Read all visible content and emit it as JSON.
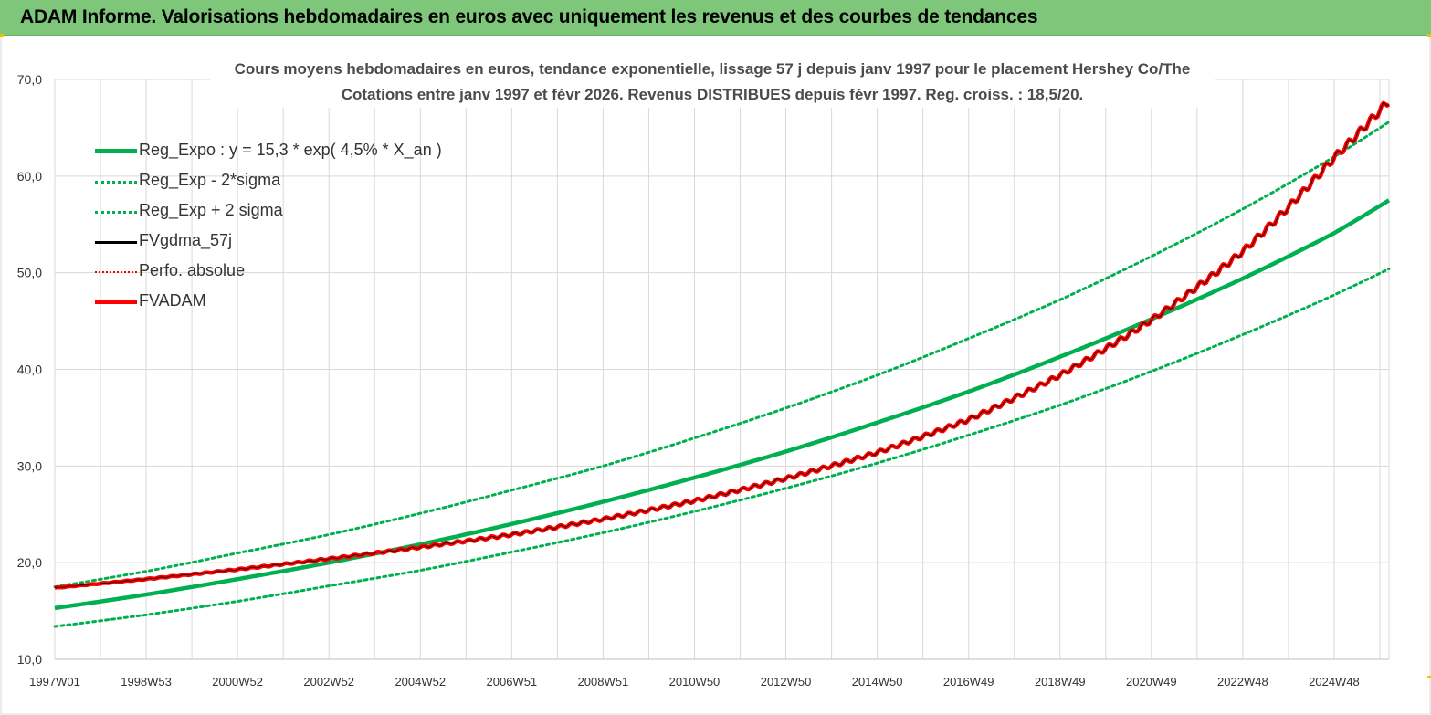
{
  "header": {
    "title": "ADAM Informe. Valorisations hebdomadaires en euros avec uniquement les revenus et des courbes de tendances",
    "background": "#7dc67a"
  },
  "chart_data": {
    "type": "line",
    "title": "Cours moyens hebdomadaires en euros, tendance exponentielle, lissage 57 j depuis janv 1997 pour le placement Hershey Co/The",
    "subtitle": "Cotations entre janv 1997 et févr 2026. Revenus DISTRIBUES depuis févr 1997. Reg. croiss. : 18,5/20.",
    "xlabel": "",
    "ylabel": "",
    "ylim": [
      10,
      70
    ],
    "yticks": [
      "10,0",
      "20,0",
      "30,0",
      "40,0",
      "50,0",
      "60,0",
      "70,0"
    ],
    "xlim": [
      1997.0,
      2026.2
    ],
    "xticks": [
      {
        "label": "1997W01",
        "x": 1997.0
      },
      {
        "label": "1998W53",
        "x": 1999.0
      },
      {
        "label": "2000W52",
        "x": 2001.0
      },
      {
        "label": "2002W52",
        "x": 2003.0
      },
      {
        "label": "2004W52",
        "x": 2005.0
      },
      {
        "label": "2006W51",
        "x": 2007.0
      },
      {
        "label": "2008W51",
        "x": 2009.0
      },
      {
        "label": "2010W50",
        "x": 2011.0
      },
      {
        "label": "2012W50",
        "x": 2013.0
      },
      {
        "label": "2014W50",
        "x": 2015.0
      },
      {
        "label": "2016W49",
        "x": 2017.0
      },
      {
        "label": "2018W49",
        "x": 2019.0
      },
      {
        "label": "2020W49",
        "x": 2021.0
      },
      {
        "label": "2022W48",
        "x": 2023.0
      },
      {
        "label": "2024W48",
        "x": 2025.0
      }
    ],
    "grid": true,
    "legend_position": "top-left",
    "series": [
      {
        "name": "Reg_Expo : y = 15,3 * exp( 4,5% *  X_an )",
        "color": "#00b050",
        "style": "solid-thick",
        "x": [
          1997,
          1999,
          2001,
          2003,
          2005,
          2007,
          2009,
          2011,
          2013,
          2015,
          2017,
          2019,
          2021,
          2023,
          2025,
          2026.2
        ],
        "values": [
          15.3,
          16.7,
          18.3,
          20.0,
          21.9,
          24.0,
          26.3,
          28.8,
          31.5,
          34.5,
          37.7,
          41.3,
          45.2,
          49.4,
          54.1,
          57.5
        ]
      },
      {
        "name": "Reg_Exp - 2*sigma",
        "color": "#00b050",
        "style": "dotted",
        "x": [
          1997,
          1999,
          2001,
          2003,
          2005,
          2007,
          2009,
          2011,
          2013,
          2015,
          2017,
          2019,
          2021,
          2023,
          2025,
          2026.2
        ],
        "values": [
          13.4,
          14.6,
          16.0,
          17.6,
          19.2,
          21.1,
          23.1,
          25.3,
          27.7,
          30.3,
          33.2,
          36.3,
          39.8,
          43.6,
          47.7,
          50.4
        ]
      },
      {
        "name": "Reg_Exp + 2 sigma",
        "color": "#00b050",
        "style": "dotted",
        "x": [
          1997,
          1999,
          2001,
          2003,
          2005,
          2007,
          2009,
          2011,
          2013,
          2015,
          2017,
          2019,
          2021,
          2023,
          2025,
          2026.2
        ],
        "values": [
          17.5,
          19.1,
          21.0,
          22.9,
          25.1,
          27.5,
          30.0,
          32.9,
          36.0,
          39.4,
          43.2,
          47.2,
          51.7,
          56.6,
          62.0,
          65.6
        ]
      },
      {
        "name": "FVgdma_57j",
        "color": "#000000",
        "style": "solid",
        "x": [
          1997,
          1999,
          2001,
          2003,
          2005,
          2007,
          2009,
          2011,
          2013,
          2015,
          2017,
          2019,
          2021,
          2023,
          2024,
          2025,
          2026.2
        ],
        "values": [
          17.4,
          18.3,
          19.3,
          20.4,
          21.6,
          22.9,
          24.5,
          26.4,
          28.7,
          31.4,
          34.8,
          39.4,
          45.1,
          52.2,
          56.8,
          61.9,
          67.8
        ]
      },
      {
        "name": "Perfo. absolue",
        "color": "#ff0000",
        "style": "dotted",
        "x": [],
        "values": []
      },
      {
        "name": "FVADAM",
        "color": "#ff0000",
        "style": "solid-thick",
        "x": [
          1997,
          1999,
          2001,
          2003,
          2005,
          2007,
          2009,
          2011,
          2013,
          2015,
          2017,
          2019,
          2021,
          2023,
          2024,
          2025,
          2026.2
        ],
        "values": [
          17.4,
          18.3,
          19.3,
          20.4,
          21.6,
          22.9,
          24.5,
          26.4,
          28.7,
          31.4,
          34.8,
          39.4,
          45.1,
          52.2,
          56.8,
          61.9,
          67.8
        ]
      }
    ]
  }
}
